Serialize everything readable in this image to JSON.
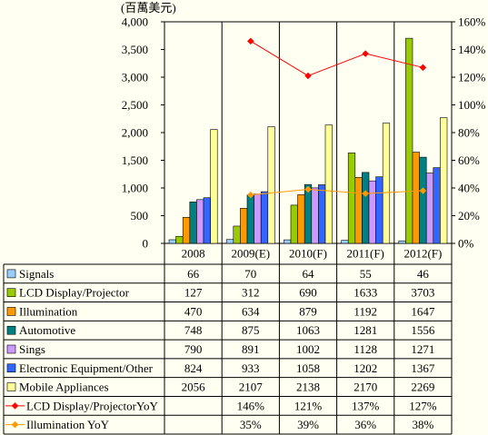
{
  "chart_data": {
    "type": "bar",
    "ylabel": "(百萬美元)",
    "categories": [
      "2008",
      "2009(E)",
      "2010(F)",
      "2011(F)",
      "2012(F)"
    ],
    "ylim": [
      0,
      4000
    ],
    "y_tick_labels": [
      "0",
      "500",
      "1,000",
      "1,500",
      "2,000",
      "2,500",
      "3,000",
      "3,500",
      "4,000"
    ],
    "y2lim": [
      0,
      160
    ],
    "y2_tick_labels": [
      "0%",
      "20%",
      "40%",
      "60%",
      "80%",
      "100%",
      "120%",
      "140%",
      "160%"
    ],
    "grid": false,
    "legend": "bottom",
    "series": [
      {
        "name": "Signals",
        "type": "bar",
        "axis": "left",
        "color": "#99CCFF",
        "values": [
          66,
          70,
          64,
          55,
          46
        ]
      },
      {
        "name": "LCD Display/Projector",
        "type": "bar",
        "axis": "left",
        "color": "#99CC00",
        "values": [
          127,
          312,
          690,
          1633,
          3703
        ]
      },
      {
        "name": "Illumination",
        "type": "bar",
        "axis": "left",
        "color": "#FF9900",
        "values": [
          470,
          634,
          879,
          1192,
          1647
        ]
      },
      {
        "name": "Automotive",
        "type": "bar",
        "axis": "left",
        "color": "#008080",
        "values": [
          748,
          875,
          1063,
          1281,
          1556
        ]
      },
      {
        "name": "Sings",
        "type": "bar",
        "axis": "left",
        "color": "#CC99FF",
        "values": [
          790,
          891,
          1002,
          1128,
          1271
        ]
      },
      {
        "name": "Electronic Equipment/Other",
        "type": "bar",
        "axis": "left",
        "color": "#3366FF",
        "values": [
          824,
          933,
          1058,
          1202,
          1367
        ]
      },
      {
        "name": "Mobile Appliances",
        "type": "bar",
        "axis": "left",
        "color": "#FFFF99",
        "values": [
          2056,
          2107,
          2138,
          2170,
          2269
        ]
      },
      {
        "name": "LCD Display/ProjectorYoY",
        "type": "line",
        "axis": "right",
        "color": "#FF0000",
        "unit": "%",
        "values": [
          null,
          146,
          121,
          137,
          127
        ]
      },
      {
        "name": "Illumination YoY",
        "type": "line",
        "axis": "right",
        "color": "#FF9900",
        "unit": "%",
        "values": [
          null,
          35,
          39,
          36,
          38
        ]
      }
    ]
  }
}
